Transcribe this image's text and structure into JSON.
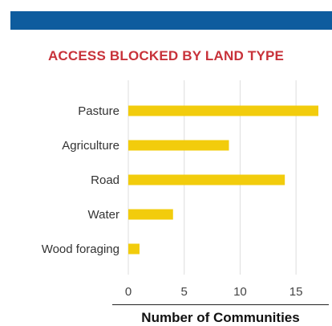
{
  "chart_data": {
    "type": "bar",
    "orientation": "horizontal",
    "title": "ACCESS BLOCKED BY LAND TYPE",
    "xlabel": "Number of Communities",
    "ylabel": "",
    "categories": [
      "Pasture",
      "Agriculture",
      "Road",
      "Water",
      "Wood foraging"
    ],
    "values": [
      17,
      9,
      14,
      4,
      1
    ],
    "xlim": [
      0,
      17
    ],
    "xticks": [
      0,
      5,
      10,
      15
    ],
    "grid": "vertical",
    "legend": "none",
    "colors": {
      "bar": "#f2cc0c",
      "title": "#c8323a",
      "band": "#0e5c9e",
      "grid": "#dddddd"
    }
  }
}
